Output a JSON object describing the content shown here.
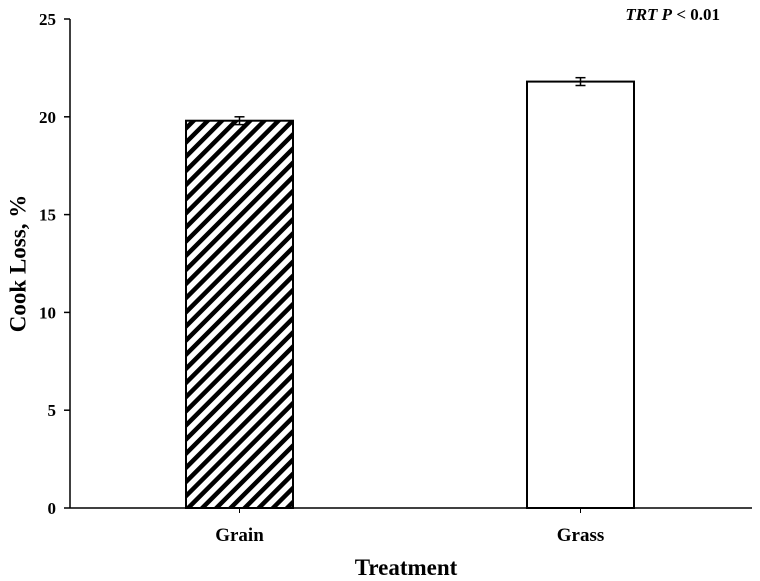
{
  "chart_data": {
    "type": "bar",
    "categories": [
      "Grain",
      "Grass"
    ],
    "series": [
      {
        "values": [
          19.8,
          21.8
        ],
        "errors": [
          0.2,
          0.2
        ],
        "fills": [
          "hatched",
          "white"
        ]
      }
    ],
    "title": "",
    "xlabel": "Treatment",
    "ylabel": "Cook Loss, %",
    "ylim": [
      0,
      25
    ],
    "yticks": [
      0,
      5,
      10,
      15,
      20,
      25
    ],
    "grid": false,
    "annotation": {
      "italic_part": "TRT P",
      "rest": " < 0.01"
    },
    "colors": {
      "bar_stroke": "#000000",
      "bar_fill_plain": "#ffffff",
      "hatch": "#000000",
      "axis": "#000000"
    }
  }
}
